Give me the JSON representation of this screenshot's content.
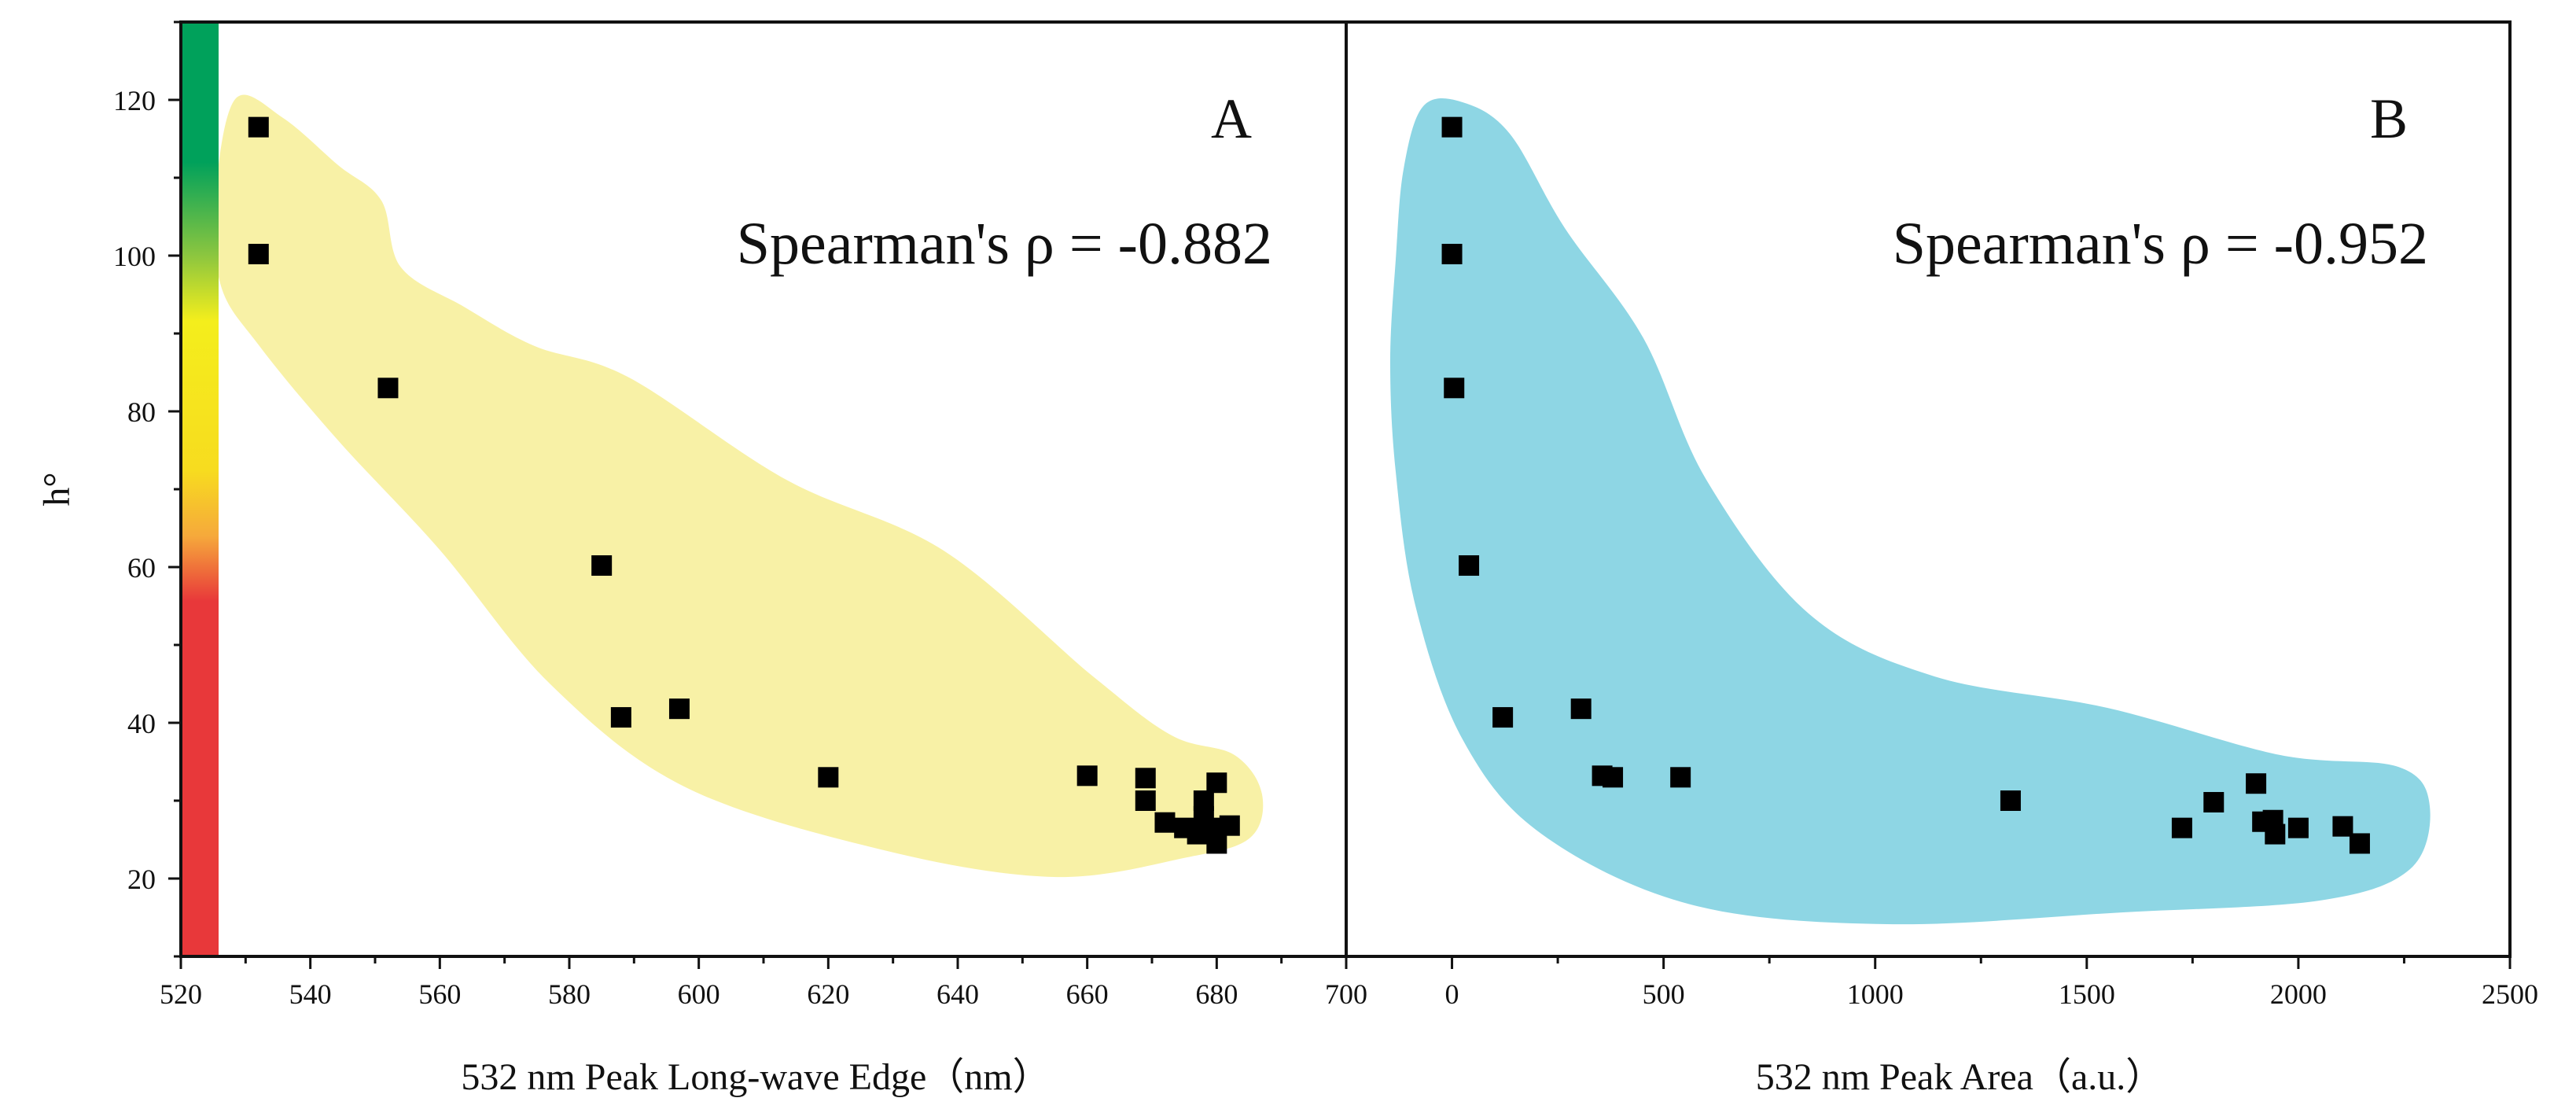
{
  "colors": {
    "panel_a_blob": "#f8f1a6",
    "panel_b_blob": "#8ed6e4",
    "marker": "#000000",
    "hue_bar_top": "#00a15b",
    "hue_bar_yellow": "#f4ee1c",
    "hue_bar_orange": "#f6a93b",
    "hue_bar_red": "#e8383a"
  },
  "shared_y_axis": {
    "label": "h°",
    "range": [
      10,
      130
    ],
    "ticks": [
      20,
      40,
      60,
      80,
      100,
      120
    ]
  },
  "chart_data": [
    {
      "type": "scatter",
      "panel": "A",
      "annotation": "Spearman's ρ = -0.882",
      "xlabel": "532 nm Peak Long-wave Edge（nm）",
      "ylabel": "h°",
      "xlim": [
        520,
        700
      ],
      "ylim": [
        10,
        130
      ],
      "x_ticks": [
        520,
        540,
        560,
        580,
        600,
        620,
        640,
        660,
        680,
        700
      ],
      "y_ticks": [
        20,
        40,
        60,
        80,
        100,
        120
      ],
      "grid": false,
      "marker": "square",
      "points": [
        {
          "x": 532,
          "y": 116.5
        },
        {
          "x": 532,
          "y": 100.2
        },
        {
          "x": 552,
          "y": 83.0
        },
        {
          "x": 585,
          "y": 60.2
        },
        {
          "x": 588,
          "y": 40.7
        },
        {
          "x": 597,
          "y": 41.8
        },
        {
          "x": 620,
          "y": 33.0
        },
        {
          "x": 660,
          "y": 33.2
        },
        {
          "x": 669,
          "y": 32.9
        },
        {
          "x": 669,
          "y": 30.0
        },
        {
          "x": 672,
          "y": 27.2
        },
        {
          "x": 675,
          "y": 26.5
        },
        {
          "x": 677,
          "y": 25.7
        },
        {
          "x": 678,
          "y": 28.0
        },
        {
          "x": 678,
          "y": 30.0
        },
        {
          "x": 679,
          "y": 26.5
        },
        {
          "x": 680,
          "y": 32.3
        },
        {
          "x": 680,
          "y": 24.5
        },
        {
          "x": 682,
          "y": 26.8
        }
      ]
    },
    {
      "type": "scatter",
      "panel": "B",
      "annotation": "Spearman's ρ = -0.952",
      "xlabel": "532 nm Peak Area（a.u.）",
      "ylabel": "h°",
      "xlim": [
        -250,
        2500
      ],
      "ylim": [
        10,
        130
      ],
      "x_ticks": [
        0,
        500,
        1000,
        1500,
        2000,
        2500
      ],
      "y_ticks": [
        20,
        40,
        60,
        80,
        100,
        120
      ],
      "grid": false,
      "marker": "square",
      "points": [
        {
          "x": 0,
          "y": 116.5
        },
        {
          "x": 0,
          "y": 100.2
        },
        {
          "x": 5,
          "y": 83.0
        },
        {
          "x": 40,
          "y": 60.2
        },
        {
          "x": 120,
          "y": 40.7
        },
        {
          "x": 305,
          "y": 41.8
        },
        {
          "x": 355,
          "y": 33.2
        },
        {
          "x": 380,
          "y": 33.0
        },
        {
          "x": 540,
          "y": 33.0
        },
        {
          "x": 1320,
          "y": 30.0
        },
        {
          "x": 1725,
          "y": 26.5
        },
        {
          "x": 1800,
          "y": 29.8
        },
        {
          "x": 1900,
          "y": 32.2
        },
        {
          "x": 1915,
          "y": 27.3
        },
        {
          "x": 1940,
          "y": 27.5
        },
        {
          "x": 1945,
          "y": 25.7
        },
        {
          "x": 2000,
          "y": 26.5
        },
        {
          "x": 2105,
          "y": 26.7
        },
        {
          "x": 2145,
          "y": 24.5
        }
      ]
    }
  ]
}
